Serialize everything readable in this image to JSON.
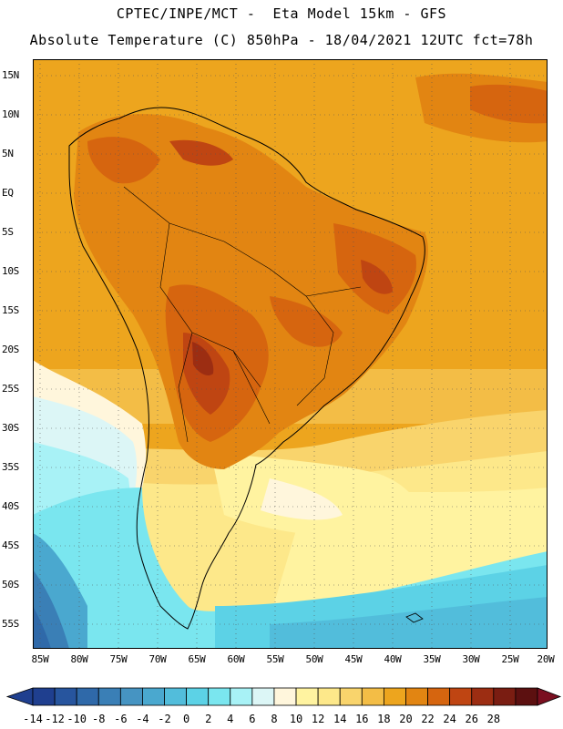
{
  "header": {
    "title_line1": "CPTEC/INPE/MCT -  Eta Model 15km - GFS",
    "title_line2": "Absolute Temperature (C) 850hPa - 18/04/2021 12UTC fct=78h"
  },
  "map": {
    "lat_labels": [
      "15N",
      "10N",
      "5N",
      "EQ",
      "5S",
      "10S",
      "15S",
      "20S",
      "25S",
      "30S",
      "35S",
      "40S",
      "45S",
      "50S",
      "55S"
    ],
    "lon_labels": [
      "85W",
      "80W",
      "75W",
      "70W",
      "65W",
      "60W",
      "55W",
      "50W",
      "45W",
      "40W",
      "35W",
      "30W",
      "25W",
      "20W"
    ]
  },
  "colorbar": {
    "ticks": [
      "-14",
      "-12",
      "-10",
      "-8",
      "-6",
      "-4",
      "-2",
      "0",
      "2",
      "4",
      "6",
      "8",
      "10",
      "12",
      "14",
      "16",
      "18",
      "20",
      "22",
      "24",
      "26",
      "28"
    ],
    "colors": [
      "#1f3f8f",
      "#27559e",
      "#2f69a9",
      "#3a7fb6",
      "#4694c2",
      "#4aa8cf",
      "#52bddb",
      "#5cd2e6",
      "#7ae6ef",
      "#a8f2f6",
      "#dcf6f6",
      "#fff6dc",
      "#fff3a0",
      "#fde88a",
      "#f9d46c",
      "#f3bd46",
      "#eda51e",
      "#e28512",
      "#d6650f",
      "#bf4512",
      "#9c2d12",
      "#7a1d12",
      "#5c1010"
    ],
    "under_color": "#1f3f8f",
    "over_color": "#7a0f20"
  }
}
